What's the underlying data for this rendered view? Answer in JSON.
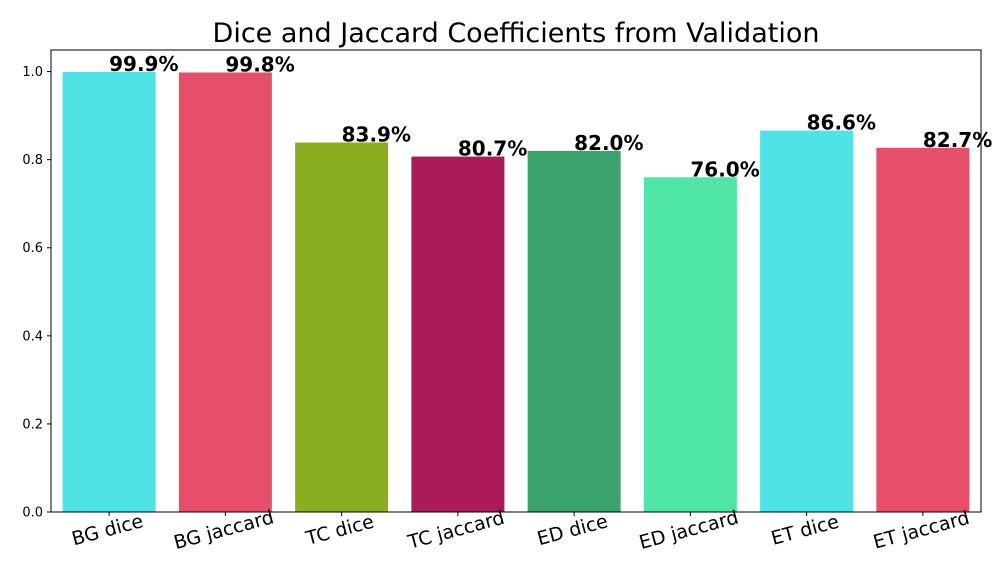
{
  "chart_data": {
    "type": "bar",
    "title": "Dice and Jaccard Coefficients from Validation",
    "xlabel": "",
    "ylabel": "",
    "categories": [
      "BG dice",
      "BG jaccard",
      "TC dice",
      "TC jaccard",
      "ED dice",
      "ED jaccard",
      "ET dice",
      "ET jaccard"
    ],
    "values": [
      0.999,
      0.998,
      0.839,
      0.807,
      0.82,
      0.76,
      0.866,
      0.827
    ],
    "data_labels": [
      "99.9%",
      "99.8%",
      "83.9%",
      "80.7%",
      "82.0%",
      "76.0%",
      "86.6%",
      "82.7%"
    ],
    "colors": [
      "#4fe3e5",
      "#e64f6a",
      "#8aae1f",
      "#ab1a59",
      "#3aa36b",
      "#4fe5a7",
      "#4fe3e5",
      "#e64f6a"
    ],
    "ylim": [
      0,
      1.049
    ],
    "yticks": [
      0.0,
      0.2,
      0.4,
      0.6,
      0.8,
      1.0
    ],
    "ytick_labels": [
      "0.0",
      "0.2",
      "0.4",
      "0.6",
      "0.8",
      "1.0"
    ],
    "grid": false,
    "legend": "none"
  }
}
